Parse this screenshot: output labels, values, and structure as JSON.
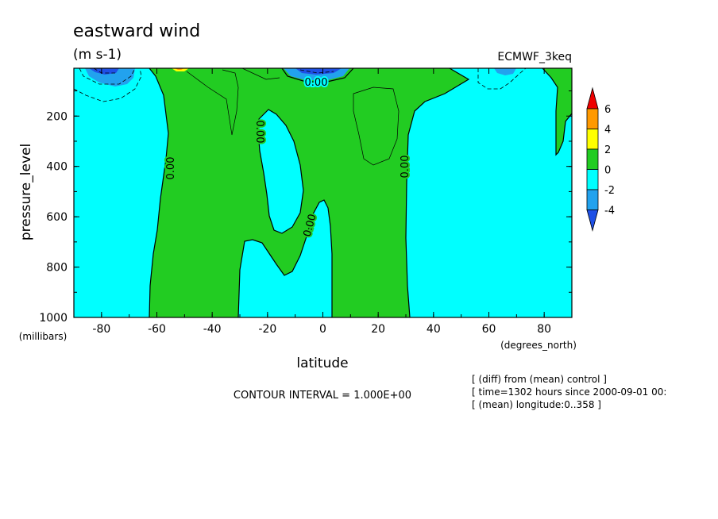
{
  "chart_data": {
    "type": "contour",
    "title": "eastward wind",
    "subtitle": "(m s-1)",
    "dataset_label": "ECMWF_3keq",
    "xlabel": "latitude",
    "xunit": "(degrees_north)",
    "ylabel": "pressure_level",
    "yunit": "(millibars)",
    "xlim": [
      -90,
      90
    ],
    "ylim": [
      1000,
      10
    ],
    "x_ticks": [
      -80,
      -60,
      -40,
      -20,
      0,
      20,
      40,
      60,
      80
    ],
    "y_ticks": [
      200,
      400,
      600,
      800,
      1000
    ],
    "colorbar": {
      "ticks": [
        6,
        4,
        2,
        0,
        -2,
        -4
      ],
      "bins": [
        {
          "range": [
            6,
            8
          ],
          "color": "#ee0000"
        },
        {
          "range": [
            4,
            6
          ],
          "color": "#ff9900"
        },
        {
          "range": [
            2,
            4
          ],
          "color": "#ffff00"
        },
        {
          "range": [
            0,
            2
          ],
          "color": "#22cc22"
        },
        {
          "range": [
            -2,
            0
          ],
          "color": "#00ffff"
        },
        {
          "range": [
            -4,
            -2
          ],
          "color": "#22a2ee"
        },
        {
          "range": [
            -6,
            -4
          ],
          "color": "#1e50e6"
        }
      ]
    },
    "contour_labels": [
      {
        "text": "0.00",
        "lat": -55,
        "p": 420
      },
      {
        "text": "0.00",
        "lat": -23,
        "p": 250
      },
      {
        "text": "0.00",
        "lat": -3,
        "p": 40
      },
      {
        "text": "0.00",
        "lat": -4,
        "p": 660
      },
      {
        "text": "0.00",
        "lat": 29,
        "p": 410
      }
    ],
    "contour_interval": "CONTOUR INTERVAL = 1.000E+00",
    "grid": false,
    "footnotes": [
      "[ (diff) from (mean) control ]",
      "[ time=1302 hours since 2000-09-01 00:",
      "[ (mean) longitude:0..358 ]"
    ]
  }
}
